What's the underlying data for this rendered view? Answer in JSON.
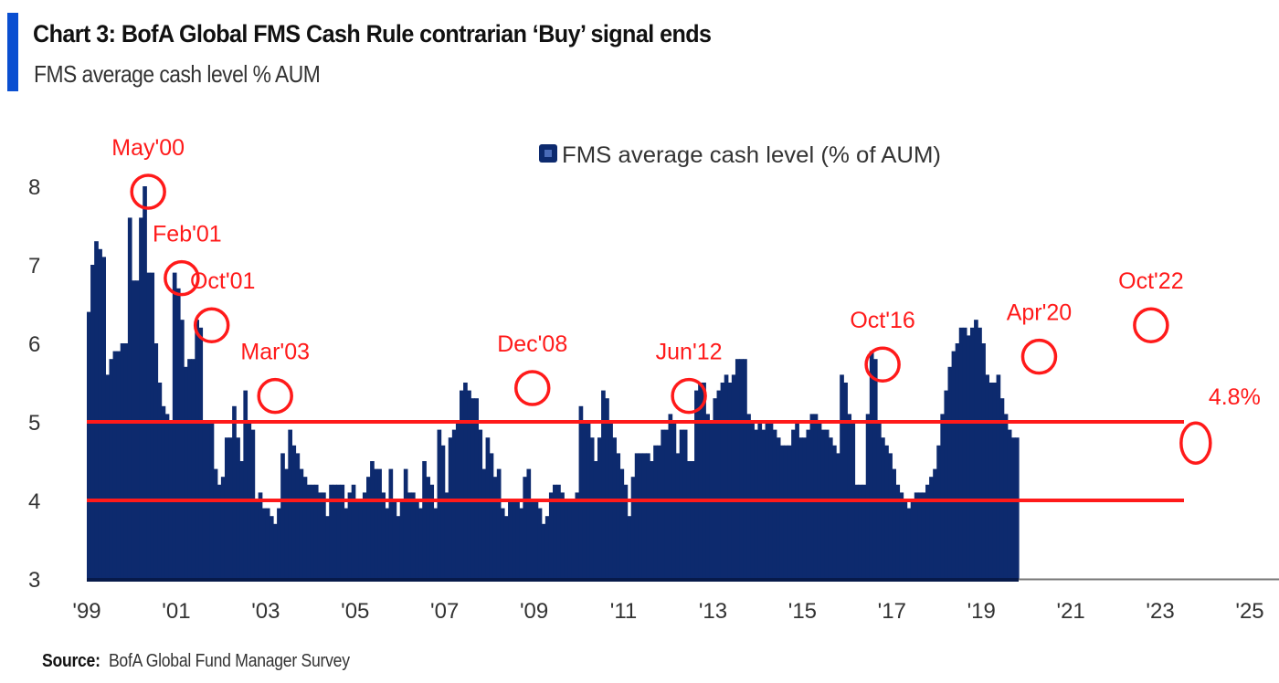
{
  "header": {
    "title": "Chart 3: BofA Global FMS Cash Rule contrarian ‘Buy’ signal ends",
    "subtitle": "FMS average cash level % AUM"
  },
  "footer": {
    "source_label": "Source:",
    "source_text": "BofA Global Fund Manager Survey"
  },
  "colors": {
    "bar": "#0d2a6e",
    "accent": "#0a4fd1",
    "annotation": "#ff1a1a",
    "threshold": "#ff1a1a"
  },
  "chart_data": {
    "type": "bar",
    "title": "Chart 3: BofA Global FMS Cash Rule contrarian ‘Buy’ signal ends",
    "subtitle": "FMS average cash level % AUM",
    "xlabel": "",
    "ylabel": "",
    "ylim": [
      3,
      8.4
    ],
    "yticks": [
      3,
      4,
      5,
      6,
      7,
      8
    ],
    "xlim": [
      1999.0,
      2026.0
    ],
    "xticks": [
      {
        "value": 1999,
        "label": "'99"
      },
      {
        "value": 2001,
        "label": "'01"
      },
      {
        "value": 2003,
        "label": "'03"
      },
      {
        "value": 2005,
        "label": "'05"
      },
      {
        "value": 2007,
        "label": "'07"
      },
      {
        "value": 2009,
        "label": "'09"
      },
      {
        "value": 2011,
        "label": "'11"
      },
      {
        "value": 2013,
        "label": "'13"
      },
      {
        "value": 2015,
        "label": "'15"
      },
      {
        "value": 2017,
        "label": "'17"
      },
      {
        "value": 2019,
        "label": "'19"
      },
      {
        "value": 2021,
        "label": "'21"
      },
      {
        "value": 2023,
        "label": "'23"
      },
      {
        "value": 2025,
        "label": "'25"
      }
    ],
    "grid": false,
    "legend": {
      "position": "top-center",
      "entries": [
        "FMS average cash level (% of AUM)"
      ]
    },
    "series": [
      {
        "name": "FMS average cash level (% of AUM)",
        "start": "1999-01",
        "frequency": "monthly",
        "values": [
          6.4,
          7.0,
          7.3,
          7.2,
          7.1,
          5.6,
          5.8,
          5.9,
          5.9,
          6.0,
          6.0,
          7.6,
          6.8,
          6.8,
          7.6,
          8.0,
          6.9,
          6.9,
          6.0,
          5.5,
          5.2,
          5.1,
          5.0,
          6.9,
          6.7,
          6.3,
          5.7,
          5.8,
          5.8,
          6.3,
          6.2,
          5.0,
          5.0,
          5.0,
          4.4,
          4.2,
          4.3,
          4.8,
          4.8,
          5.2,
          4.8,
          4.5,
          5.4,
          5.0,
          4.9,
          4.0,
          4.1,
          3.9,
          3.9,
          3.8,
          3.7,
          3.9,
          4.6,
          4.4,
          4.9,
          4.7,
          4.6,
          4.4,
          4.3,
          4.2,
          4.2,
          4.2,
          4.1,
          4.1,
          3.8,
          4.2,
          4.2,
          4.2,
          4.2,
          3.9,
          4.1,
          4.2,
          4.0,
          4.0,
          4.1,
          4.3,
          4.5,
          4.4,
          4.4,
          4.1,
          3.9,
          4.4,
          4.0,
          3.8,
          4.0,
          4.4,
          4.1,
          4.1,
          4.0,
          3.9,
          4.5,
          4.3,
          4.2,
          3.9,
          4.9,
          4.7,
          4.1,
          4.8,
          4.9,
          5.0,
          5.4,
          5.5,
          5.4,
          5.3,
          5.3,
          4.9,
          4.4,
          4.8,
          4.6,
          4.3,
          4.4,
          3.9,
          3.8,
          4.0,
          4.0,
          4.0,
          3.9,
          4.3,
          4.4,
          4.0,
          4.0,
          3.9,
          3.7,
          3.8,
          4.1,
          4.2,
          4.2,
          4.1,
          4.0,
          4.0,
          4.0,
          4.1,
          5.2,
          5.0,
          5.0,
          4.8,
          4.5,
          4.8,
          5.4,
          5.3,
          5.0,
          4.8,
          4.6,
          4.4,
          4.2,
          3.8,
          4.3,
          4.6,
          4.6,
          4.6,
          4.6,
          4.5,
          4.7,
          4.7,
          4.9,
          4.9,
          5.1,
          5.0,
          4.6,
          4.9,
          4.9,
          4.5,
          4.5,
          5.4,
          5.5,
          5.5,
          5.1,
          5.0,
          5.3,
          5.4,
          5.5,
          5.6,
          5.5,
          5.6,
          5.8,
          5.8,
          5.8,
          5.1,
          5.0,
          4.9,
          5.0,
          4.9,
          5.0,
          5.0,
          4.9,
          4.8,
          4.7,
          4.7,
          4.7,
          4.9,
          5.0,
          4.8,
          4.8,
          4.9,
          5.1,
          5.1,
          5.0,
          4.9,
          4.9,
          4.8,
          4.7,
          4.6,
          5.6,
          5.5,
          5.1,
          5.0,
          4.2,
          4.2,
          4.2,
          5.1,
          5.9,
          5.8,
          5.0,
          4.8,
          4.7,
          4.6,
          4.4,
          4.2,
          4.1,
          4.0,
          3.9,
          4.0,
          4.1,
          4.1,
          4.1,
          4.2,
          4.3,
          4.4,
          4.7,
          5.1,
          5.4,
          5.7,
          5.9,
          6.0,
          6.2,
          6.2,
          6.1,
          6.2,
          6.3,
          6.2,
          6.0,
          5.6,
          5.5,
          5.5,
          5.6,
          5.3,
          5.1,
          4.9,
          4.8,
          4.8
        ]
      }
    ],
    "reference_lines": [
      {
        "axis": "y",
        "value": 5.0,
        "label": "",
        "color": "#ff1a1a"
      },
      {
        "axis": "y",
        "value": 4.0,
        "label": "",
        "color": "#ff1a1a"
      }
    ],
    "annotations": [
      {
        "label": "May'00",
        "x": 2000.33,
        "y": 8.0
      },
      {
        "label": "Feb'01",
        "x": 2001.08,
        "y": 6.9
      },
      {
        "label": "Oct'01",
        "x": 2001.75,
        "y": 6.3
      },
      {
        "label": "Mar'03",
        "x": 2003.17,
        "y": 5.4
      },
      {
        "label": "Dec'08",
        "x": 2008.92,
        "y": 5.5
      },
      {
        "label": "Jun'12",
        "x": 2012.42,
        "y": 5.4
      },
      {
        "label": "Oct'16",
        "x": 2016.75,
        "y": 5.8
      },
      {
        "label": "Apr'20",
        "x": 2020.25,
        "y": 5.9
      },
      {
        "label": "Oct'22",
        "x": 2022.75,
        "y": 6.3
      },
      {
        "label": "4.8%",
        "x": 2023.75,
        "y": 4.8
      }
    ]
  }
}
